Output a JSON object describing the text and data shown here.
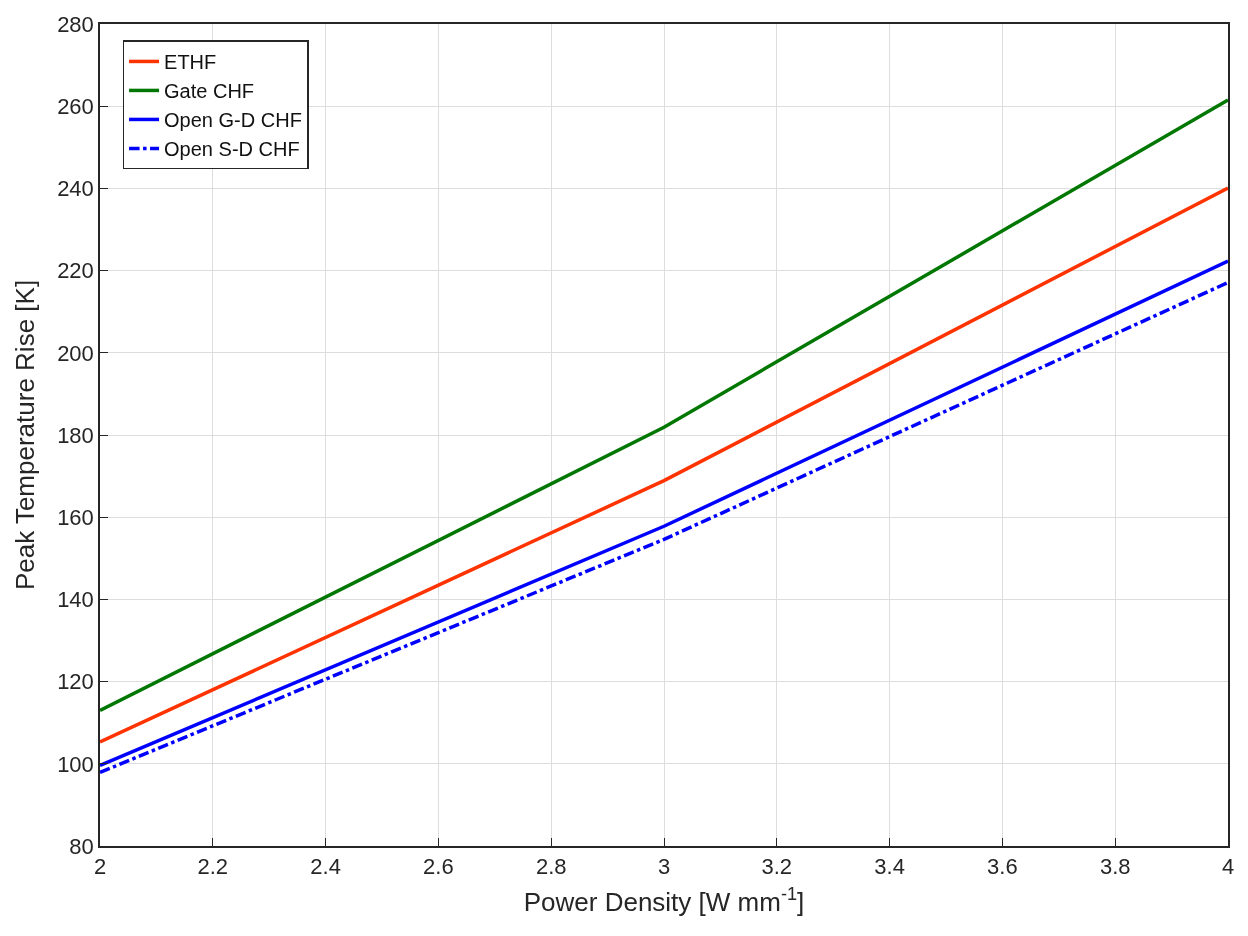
{
  "chart_data": {
    "type": "line",
    "xlabel": "Power Density [W mm$^{-1}$]",
    "ylabel": "Peak Temperature Rise [K]",
    "x": [
      2,
      3,
      4
    ],
    "series": [
      {
        "name": "ETHF",
        "color": "#ff3300",
        "values": [
          105.3,
          168.9,
          240.1
        ]
      },
      {
        "name": "Gate CHF",
        "color": "#007700",
        "values": [
          113,
          181.9,
          261.5
        ]
      },
      {
        "name": "Open G-D CHF",
        "color": "#0000ff",
        "values": [
          99.6,
          157.8,
          222.3
        ]
      },
      {
        "name": "Open S-D CHF",
        "color": "#0000ff",
        "values": [
          97.9,
          154.6,
          217.1
        ],
        "line_style": "dashed"
      }
    ],
    "xlim": [
      2,
      4
    ],
    "xticks": [
      2,
      2.2,
      2.4,
      2.6,
      2.8,
      3,
      3.2,
      3.4,
      3.6,
      3.8,
      4
    ],
    "ylim": [
      80,
      280
    ],
    "yticks": [
      80,
      100,
      120,
      140,
      160,
      180,
      200,
      220,
      240,
      260,
      280
    ],
    "grid": true,
    "legend": "top left"
  }
}
